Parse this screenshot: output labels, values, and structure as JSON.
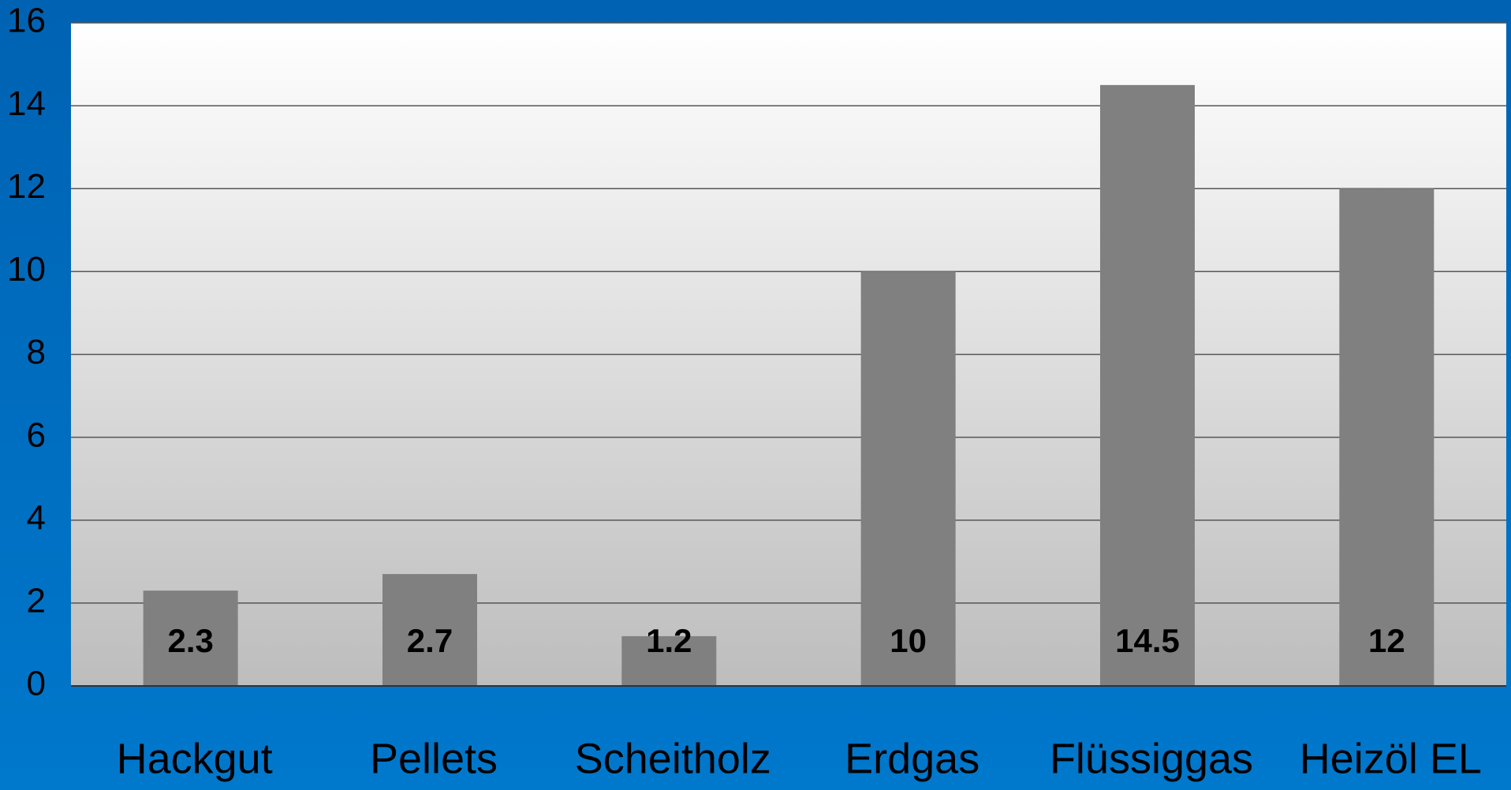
{
  "chart_data": {
    "type": "bar",
    "categories": [
      "Hackgut",
      "Pellets",
      "Scheitholz",
      "Erdgas",
      "Flüssiggas",
      "Heizöl EL"
    ],
    "values": [
      2.3,
      2.7,
      1.2,
      10,
      14.5,
      12
    ],
    "color": "#808080",
    "ylim": [
      0,
      16
    ],
    "yticks": [
      0,
      2,
      4,
      6,
      8,
      10,
      12,
      14,
      16
    ],
    "grid": true
  }
}
